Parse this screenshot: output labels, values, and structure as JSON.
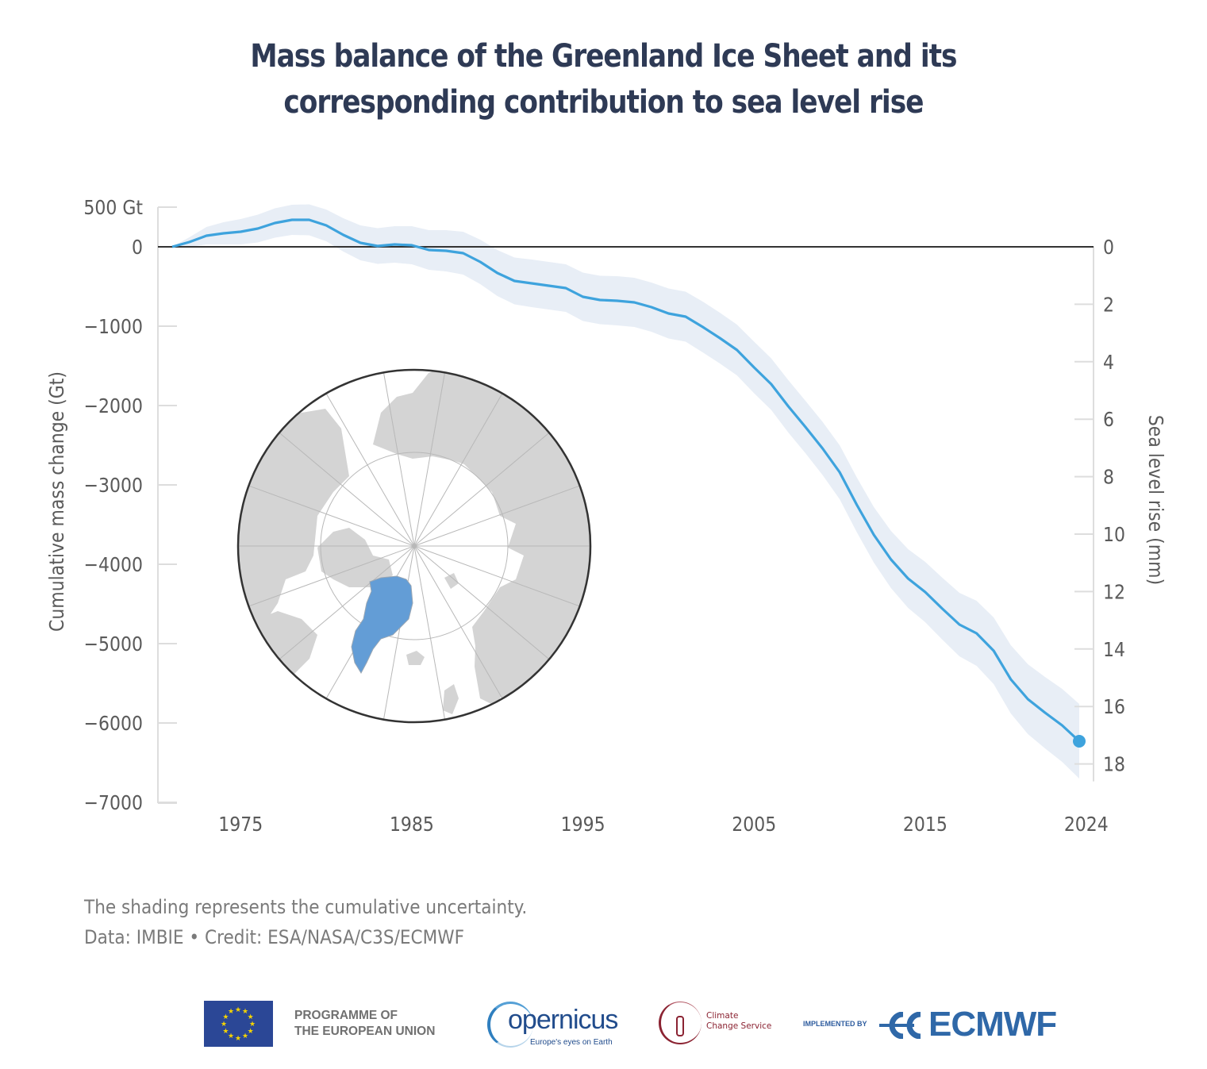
{
  "title_lines": [
    "Mass balance of the Greenland Ice Sheet and its",
    "corresponding contribution to sea level rise"
  ],
  "footer": {
    "note": "The shading represents the cumulative uncertainty.",
    "credit": "Data: IMBIE • Credit: ESA/NASA/C3S/ECMWF"
  },
  "logos": {
    "eu_line1": "PROGRAMME OF",
    "eu_line2": "THE EUROPEAN UNION",
    "copernicus": "opernicus",
    "copernicus_tagline": "Europe's eyes on Earth",
    "c3s_line1": "Climate",
    "c3s_line2": "Change Service",
    "implemented_by": "IMPLEMENTED BY",
    "ecmwf": "ECMWF"
  },
  "colors": {
    "line": "#3ea3dd",
    "band": "#e8eef6",
    "zero_line": "#333333",
    "greenland": "#639dd6",
    "land": "#d4d4d4",
    "title": "#2e3a55"
  },
  "inset_map": {
    "description": "Polar projection of the Arctic with Greenland highlighted",
    "highlight": "Greenland"
  },
  "chart_data": {
    "type": "line",
    "title": "Mass balance of the Greenland Ice Sheet and its corresponding contribution to sea level rise",
    "xlabel": "",
    "ylabel": "Cumulative mass change (Gt)",
    "y2label": "Sea level rise (mm)",
    "xlim": [
      1971,
      2024
    ],
    "ylim": [
      -7000,
      500
    ],
    "y2lim_mm": [
      0,
      18
    ],
    "gt_per_mm": 362,
    "x_ticks": [
      1975,
      1985,
      1995,
      2005,
      2015,
      2024
    ],
    "y_ticks": [
      {
        "value": 500,
        "label": "500 Gt"
      },
      {
        "value": 0,
        "label": "0"
      },
      {
        "value": -1000,
        "label": "−1000"
      },
      {
        "value": -2000,
        "label": "−2000"
      },
      {
        "value": -3000,
        "label": "−3000"
      },
      {
        "value": -4000,
        "label": "−4000"
      },
      {
        "value": -5000,
        "label": "−5000"
      },
      {
        "value": -6000,
        "label": "−6000"
      },
      {
        "value": -7000,
        "label": "−7000"
      }
    ],
    "y2_ticks": [
      0,
      2,
      4,
      6,
      8,
      10,
      12,
      14,
      16,
      18
    ],
    "grid": false,
    "legend": "none",
    "endpoint_marker": {
      "year": 2024,
      "value": -6230
    },
    "series": [
      {
        "name": "Cumulative mass change",
        "x": [
          1971,
          1972,
          1973,
          1974,
          1975,
          1976,
          1977,
          1978,
          1979,
          1980,
          1981,
          1982,
          1983,
          1984,
          1985,
          1986,
          1987,
          1988,
          1989,
          1990,
          1991,
          1992,
          1993,
          1994,
          1995,
          1996,
          1997,
          1998,
          1999,
          2000,
          2001,
          2002,
          2003,
          2004,
          2005,
          2006,
          2007,
          2008,
          2009,
          2010,
          2011,
          2012,
          2013,
          2014,
          2015,
          2016,
          2017,
          2018,
          2019,
          2020,
          2021,
          2022,
          2023,
          2024
        ],
        "values": [
          0,
          60,
          140,
          170,
          190,
          230,
          300,
          340,
          340,
          270,
          150,
          50,
          10,
          30,
          20,
          -40,
          -50,
          -80,
          -190,
          -330,
          -430,
          -460,
          -490,
          -520,
          -630,
          -670,
          -680,
          -700,
          -760,
          -840,
          -880,
          -1010,
          -1150,
          -1300,
          -1520,
          -1730,
          -2010,
          -2270,
          -2540,
          -2840,
          -3250,
          -3630,
          -3940,
          -4180,
          -4350,
          -4560,
          -4760,
          -4870,
          -5090,
          -5450,
          -5700,
          -5870,
          -6030,
          -6230
        ],
        "uncertainty": [
          0,
          60,
          110,
          140,
          160,
          175,
          185,
          190,
          195,
          200,
          210,
          220,
          225,
          230,
          240,
          250,
          260,
          270,
          280,
          290,
          295,
          300,
          300,
          300,
          305,
          305,
          310,
          310,
          310,
          315,
          315,
          320,
          320,
          320,
          325,
          325,
          330,
          330,
          335,
          340,
          345,
          350,
          360,
          370,
          380,
          390,
          400,
          410,
          420,
          430,
          440,
          450,
          460,
          470
        ]
      }
    ]
  }
}
